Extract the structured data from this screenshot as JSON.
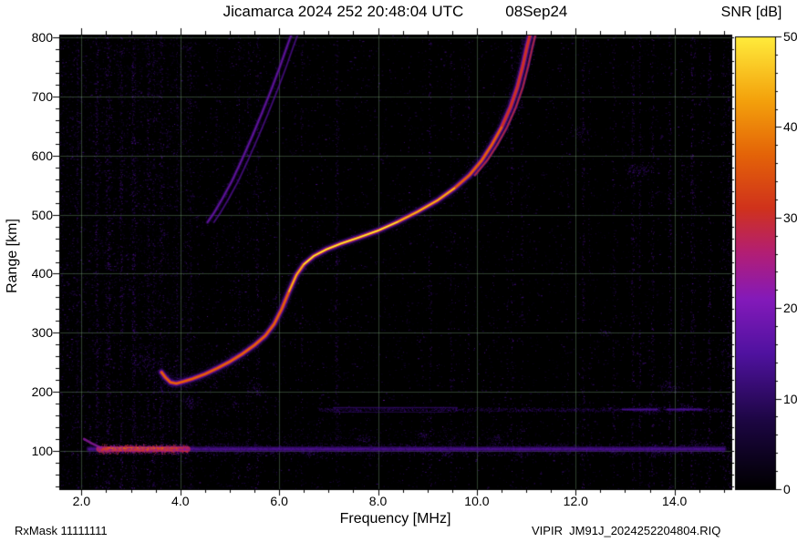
{
  "header": {
    "title": "Jicamarca 2024 252 20:48:04 UTC",
    "date": "08Sep24"
  },
  "colorbar": {
    "label": "SNR [dB]",
    "ticks": [
      0,
      10,
      20,
      30,
      40,
      50
    ],
    "min": 0,
    "max": 50
  },
  "axes": {
    "xlabel": "Frequency [MHz]",
    "ylabel": "Range [km]",
    "x_ticks": [
      2.0,
      4.0,
      6.0,
      8.0,
      10.0,
      12.0,
      14.0
    ],
    "y_ticks": [
      100,
      200,
      300,
      400,
      500,
      600,
      700,
      800
    ],
    "xlim": [
      1.55,
      15.15
    ],
    "ylim": [
      35,
      805
    ]
  },
  "footer": {
    "left": "RxMask 11111111",
    "right": "VIPIR  JM91J_2024252204804.RIQ"
  },
  "chart_data": {
    "type": "heatmap",
    "subtype": "ionogram",
    "title": "Jicamarca 2024 252 20:48:04 UTC  08Sep24",
    "xlabel": "Frequency [MHz]",
    "ylabel": "Range [km]",
    "zlabel": "SNR [dB]",
    "xlim": [
      1.55,
      15.15
    ],
    "ylim": [
      35,
      805
    ],
    "zlim": [
      0,
      50
    ],
    "grid": true,
    "legend_position": "none",
    "colormap_stops": [
      [
        0.0,
        0,
        0,
        0
      ],
      [
        0.15,
        28,
        6,
        66
      ],
      [
        0.3,
        80,
        18,
        160
      ],
      [
        0.42,
        132,
        26,
        186
      ],
      [
        0.52,
        178,
        30,
        118
      ],
      [
        0.62,
        208,
        50,
        28
      ],
      [
        0.74,
        228,
        100,
        8
      ],
      [
        0.86,
        244,
        162,
        12
      ],
      [
        1.0,
        255,
        236,
        60
      ]
    ],
    "series": [
      {
        "name": "f_layer_trace",
        "type": "trace",
        "peak_snr_db": 47,
        "points_f_r": [
          [
            3.62,
            233
          ],
          [
            3.7,
            224
          ],
          [
            3.8,
            216
          ],
          [
            3.92,
            214
          ],
          [
            4.05,
            217
          ],
          [
            4.25,
            222
          ],
          [
            4.5,
            230
          ],
          [
            4.75,
            240
          ],
          [
            5.0,
            251
          ],
          [
            5.25,
            264
          ],
          [
            5.5,
            279
          ],
          [
            5.72,
            295
          ],
          [
            5.9,
            315
          ],
          [
            6.05,
            340
          ],
          [
            6.2,
            370
          ],
          [
            6.35,
            398
          ],
          [
            6.5,
            416
          ],
          [
            6.7,
            430
          ],
          [
            6.95,
            441
          ],
          [
            7.25,
            451
          ],
          [
            7.6,
            461
          ],
          [
            8.0,
            473
          ],
          [
            8.4,
            488
          ],
          [
            8.8,
            505
          ],
          [
            9.2,
            524
          ],
          [
            9.55,
            545
          ],
          [
            9.85,
            567
          ],
          [
            10.1,
            592
          ],
          [
            10.3,
            618
          ],
          [
            10.5,
            648
          ],
          [
            10.68,
            682
          ],
          [
            10.82,
            716
          ],
          [
            10.93,
            752
          ],
          [
            11.02,
            786
          ],
          [
            11.08,
            806
          ]
        ]
      },
      {
        "name": "second_hop_trace",
        "type": "trace",
        "peak_snr_db": 12,
        "points_f_r": [
          [
            4.55,
            487
          ],
          [
            4.68,
            503
          ],
          [
            4.85,
            527
          ],
          [
            5.05,
            558
          ],
          [
            5.25,
            594
          ],
          [
            5.45,
            632
          ],
          [
            5.65,
            672
          ],
          [
            5.85,
            714
          ],
          [
            6.02,
            752
          ],
          [
            6.18,
            790
          ],
          [
            6.28,
            812
          ]
        ]
      },
      {
        "name": "e_region_band",
        "type": "band",
        "range_km": 103,
        "f_start": 2.15,
        "f_end": 15.0,
        "enhanced_f": [
          2.35,
          4.15
        ],
        "peak_snr_db": 30
      },
      {
        "name": "weak_band_170km",
        "type": "band",
        "range_km": 170,
        "f_start": 6.8,
        "f_end": 15.0,
        "peak_snr_db": 8
      }
    ]
  }
}
